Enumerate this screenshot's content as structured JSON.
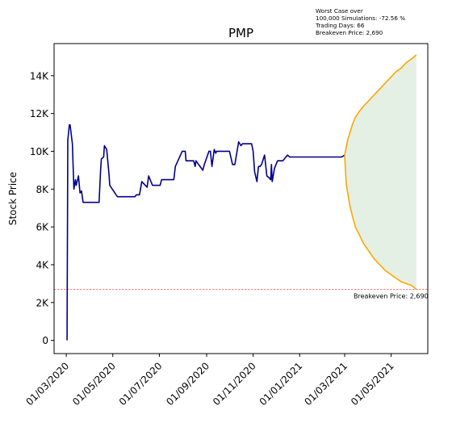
{
  "info_box": {
    "line1": "Worst Case over",
    "line2": "100,000 Simulations: -72.56 %",
    "line3": "Trading Days: 66",
    "line4": "Breakeven Price: 2,690"
  },
  "chart_data": {
    "type": "line",
    "title": "PMP",
    "xlabel": "",
    "ylabel": "Stock Price",
    "ylim": [
      -700,
      15700
    ],
    "yticks": [
      0,
      2000,
      4000,
      6000,
      8000,
      10000,
      12000,
      14000
    ],
    "ytick_labels": [
      "0",
      "2K",
      "4K",
      "6K",
      "8K",
      "10K",
      "12K",
      "14K"
    ],
    "xlim": [
      "2020-02-14",
      "2021-06-18"
    ],
    "xticks": [
      "2020-03-01",
      "2020-05-01",
      "2020-07-01",
      "2020-09-01",
      "2020-11-01",
      "2021-01-01",
      "2021-03-01",
      "2021-05-01"
    ],
    "xtick_labels": [
      "01/03/2020",
      "01/05/2020",
      "01/07/2020",
      "01/09/2020",
      "01/11/2020",
      "01/01/2021",
      "01/03/2021",
      "01/05/2021"
    ],
    "grid": false,
    "series": [
      {
        "color": "#00008b",
        "x": [
          "2020-03-02",
          "2020-03-03",
          "2020-03-05",
          "2020-03-06",
          "2020-03-09",
          "2020-03-11",
          "2020-03-13",
          "2020-03-14",
          "2020-03-17",
          "2020-03-19",
          "2020-03-21",
          "2020-03-23",
          "2020-03-25",
          "2020-03-27",
          "2020-03-29",
          "2020-04-13",
          "2020-04-15",
          "2020-04-16",
          "2020-04-19",
          "2020-04-20",
          "2020-04-23",
          "2020-04-26",
          "2020-04-27",
          "2020-05-07",
          "2020-05-21",
          "2020-05-28",
          "2020-05-30",
          "2020-06-01",
          "2020-06-03",
          "2020-06-05",
          "2020-06-08",
          "2020-06-15",
          "2020-06-17",
          "2020-06-22",
          "2020-07-02",
          "2020-07-04",
          "2020-07-08",
          "2020-07-10",
          "2020-07-20",
          "2020-07-22",
          "2020-07-31",
          "2020-08-01",
          "2020-08-04",
          "2020-08-05",
          "2020-08-09",
          "2020-08-15",
          "2020-08-17",
          "2020-08-18",
          "2020-08-27",
          "2020-08-29",
          "2020-09-04",
          "2020-09-06",
          "2020-09-08",
          "2020-09-11",
          "2020-09-13",
          "2020-09-14",
          "2020-09-26",
          "2020-09-29",
          "2020-10-01",
          "2020-10-05",
          "2020-10-08",
          "2020-10-13",
          "2020-10-16",
          "2020-10-18",
          "2020-10-28",
          "2020-10-30",
          "2020-11-01",
          "2020-11-03",
          "2020-11-06",
          "2020-11-08",
          "2020-11-10",
          "2020-11-12",
          "2020-11-16",
          "2020-11-19",
          "2020-11-22",
          "2020-11-24",
          "2020-11-25",
          "2020-11-26",
          "2020-11-29",
          "2020-12-03",
          "2020-12-04",
          "2020-12-10",
          "2020-12-14",
          "2020-12-16",
          "2020-12-19",
          "2020-12-21",
          "2020-12-25",
          "2020-12-27",
          "2020-12-30",
          "2021-02-25",
          "2021-03-01"
        ],
        "y": [
          0,
          10600,
          11400,
          11400,
          10400,
          8000,
          8500,
          8200,
          8700,
          7800,
          7900,
          7300,
          7300,
          7300,
          7300,
          7300,
          9000,
          9600,
          9700,
          10300,
          10100,
          8800,
          8200,
          7600,
          7600,
          7600,
          7600,
          7700,
          7700,
          7700,
          8400,
          8100,
          8700,
          8200,
          8200,
          8500,
          8500,
          8500,
          8500,
          9200,
          10000,
          10000,
          10000,
          9500,
          9500,
          9500,
          9200,
          9500,
          9000,
          9300,
          10000,
          10000,
          9200,
          10100,
          9900,
          10000,
          10000,
          10000,
          10000,
          9300,
          9300,
          10500,
          10300,
          10400,
          10400,
          10400,
          10000,
          8900,
          8400,
          9200,
          9200,
          9300,
          9800,
          8700,
          8600,
          8500,
          9300,
          8400,
          9100,
          9500,
          9500,
          9500,
          9700,
          9800,
          9700,
          9700,
          9700,
          9700,
          9700,
          9700,
          9800
        ]
      },
      {
        "color": "#ffa500",
        "x": [
          "2021-03-01",
          "2021-03-03",
          "2021-03-05",
          "2021-03-08",
          "2021-03-11",
          "2021-03-15",
          "2021-03-20",
          "2021-03-26",
          "2021-04-02",
          "2021-04-09",
          "2021-04-16",
          "2021-04-23",
          "2021-04-30",
          "2021-05-07",
          "2021-05-14",
          "2021-05-21",
          "2021-05-28",
          "2021-06-03"
        ],
        "y": [
          9800,
          10200,
          10600,
          11000,
          11400,
          11800,
          12100,
          12400,
          12700,
          13000,
          13300,
          13600,
          13900,
          14200,
          14400,
          14700,
          14900,
          15100
        ]
      },
      {
        "color": "#ffa500",
        "x": [
          "2021-03-01",
          "2021-03-03",
          "2021-03-05",
          "2021-03-08",
          "2021-03-11",
          "2021-03-15",
          "2021-03-20",
          "2021-03-26",
          "2021-04-02",
          "2021-04-09",
          "2021-04-16",
          "2021-04-23",
          "2021-04-30",
          "2021-05-07",
          "2021-05-14",
          "2021-05-21",
          "2021-05-28",
          "2021-06-03"
        ],
        "y": [
          9800,
          8300,
          7800,
          7100,
          6600,
          6000,
          5600,
          5100,
          4700,
          4300,
          4000,
          3700,
          3500,
          3300,
          3100,
          3000,
          2900,
          2700
        ]
      }
    ],
    "band": {
      "color": "#2e8b2e",
      "opacity": 0.13,
      "x": [
        "2021-03-01",
        "2021-03-03",
        "2021-03-05",
        "2021-03-08",
        "2021-03-11",
        "2021-03-15",
        "2021-03-20",
        "2021-03-26",
        "2021-04-02",
        "2021-04-09",
        "2021-04-16",
        "2021-04-23",
        "2021-04-30",
        "2021-05-07",
        "2021-05-14",
        "2021-05-21",
        "2021-05-28",
        "2021-06-03"
      ],
      "upper": [
        9800,
        10200,
        10600,
        11000,
        11400,
        11800,
        12100,
        12400,
        12700,
        13000,
        13300,
        13600,
        13900,
        14200,
        14400,
        14700,
        14900,
        15100
      ],
      "lower": [
        9800,
        8300,
        7800,
        7100,
        6600,
        6000,
        5600,
        5100,
        4700,
        4300,
        4000,
        3700,
        3500,
        3300,
        3100,
        3000,
        2900,
        2700
      ]
    },
    "hline": {
      "y": 2690,
      "color": "#ff0000",
      "style": "dashed",
      "label": "Breakeven Price: 2,690"
    }
  }
}
